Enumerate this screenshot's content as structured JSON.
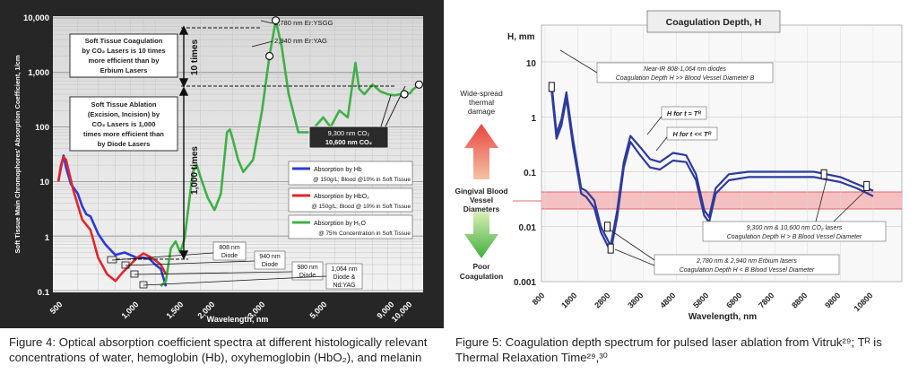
{
  "figure4": {
    "ylabel": "Soft Tissue Main Chromophores' Absorption Coefficient, 1/cm",
    "xlabel": "Wavelength, nm",
    "y_ticks": [
      "10,000",
      "1,000",
      "100",
      "10",
      "1",
      "0.1"
    ],
    "x_ticks": [
      "500",
      "1,000",
      "1,500",
      "2,000",
      "3,000",
      "5,000",
      "9,000",
      "10,000"
    ],
    "note_coag": [
      "Soft Tissue Coagulation",
      "by CO₂ Lasers is 10 times",
      "more efficient than by",
      "Erbium Lasers"
    ],
    "note_abl": [
      "Soft Tissue Ablation",
      "(Excision, Incision) by",
      "CO₂ Lasers is 1,000",
      "times more efficient than",
      "by Diode Lasers"
    ],
    "label_10x": "10 times",
    "label_1000x": "1,000 times",
    "erbium_labels": [
      "2,780 nm Er:YSGG",
      "2,940 nm Er:YAG"
    ],
    "co2_labels": [
      "9,300 nm CO₂",
      "10,600 nm CO₂"
    ],
    "diode_labels": [
      [
        "808 nm",
        "Diode"
      ],
      [
        "940 nm",
        "Diode"
      ],
      [
        "980 nm",
        "Diode"
      ],
      [
        "1,064 nm",
        "Diode &",
        "Nd:YAG"
      ]
    ],
    "legend": [
      {
        "line1": "Absorption by Hb",
        "line2": "@ 150g/L; Blood @10% in Soft Tissue",
        "color": "#2b3bd6"
      },
      {
        "line1": "Absorption by HbO₂",
        "line2": "@ 150g/L; Blood @ 10% in Soft Tissue",
        "color": "#e0262a"
      },
      {
        "line1": "Absorption by H₂O",
        "line2": "@ 75% Concentration in Soft Tissue",
        "color": "#3fb045"
      }
    ]
  },
  "figure5": {
    "title": "Coagulation Depth, H",
    "ylabel": "H, mm",
    "xlabel": "Wavelength, nm",
    "y_ticks": [
      "10",
      "1",
      "0.1",
      "0.01",
      "0.001"
    ],
    "x_ticks": [
      "800",
      "1800",
      "2800",
      "3800",
      "4800",
      "5800",
      "6800",
      "7800",
      "8800",
      "9800",
      "10800"
    ],
    "left_top": [
      "Wide-spread",
      "thermal",
      "damage"
    ],
    "left_mid": [
      "Gingival Blood",
      "Vessel",
      "Diameters"
    ],
    "left_bot": [
      "Poor",
      "Coagulation"
    ],
    "ann_diode": [
      "Near-IR 808-1,064 nm diodes",
      "Coagulation Depth H >> Blood Vessel Diameter B"
    ],
    "ann_co2": [
      "9,300 nm & 10,600 nm CO₂ lasers",
      "Coagulation Depth H > B Blood Vessel Diameter"
    ],
    "ann_erb": [
      "2,780 nm & 2,940 nm Erbium lasers",
      "Coagulation Depth H < B Blood Vessel Diameter"
    ],
    "h_tr": "H for t ≈ Tᴿ",
    "h_ll": "H for t << Tᴿ"
  },
  "captions": {
    "fig4": "Figure 4: Optical absorption coefficient spectra at different histologically relevant concentrations of water, hemoglobin (Hb), oxyhemoglobin (HbO₂), and melanin",
    "fig5": "Figure 5: Coagulation depth spectrum for pulsed laser ablation from Vitruk²⁹; Tᴿ is Thermal Relaxation Time²⁹,³⁰"
  },
  "chart_data": [
    {
      "type": "line",
      "title": "",
      "xlabel": "Wavelength, nm",
      "ylabel": "Soft Tissue Main Chromophores' Absorption Coefficient, 1/cm",
      "x_scale": "log",
      "y_scale": "log",
      "xlim": [
        400,
        11000
      ],
      "ylim": [
        0.1,
        10000
      ],
      "grid": true,
      "legend_position": "right",
      "series": [
        {
          "name": "Absorption by Hb",
          "color": "#2b3bd6",
          "points": [
            [
              420,
              10
            ],
            [
              430,
              18
            ],
            [
              440,
              30
            ],
            [
              450,
              18
            ],
            [
              470,
              9
            ],
            [
              500,
              6
            ],
            [
              520,
              3.5
            ],
            [
              540,
              2.5
            ],
            [
              560,
              2.3
            ],
            [
              600,
              1.1
            ],
            [
              640,
              0.7
            ],
            [
              700,
              0.45
            ],
            [
              760,
              0.5
            ],
            [
              800,
              0.45
            ],
            [
              850,
              0.4
            ],
            [
              900,
              0.4
            ],
            [
              950,
              0.38
            ],
            [
              1000,
              0.3
            ],
            [
              1050,
              0.25
            ],
            [
              1100,
              0.12
            ]
          ]
        },
        {
          "name": "Absorption by HbO₂",
          "color": "#e0262a",
          "points": [
            [
              420,
              10
            ],
            [
              430,
              20
            ],
            [
              440,
              28
            ],
            [
              450,
              25
            ],
            [
              480,
              7
            ],
            [
              520,
              2
            ],
            [
              560,
              1.3
            ],
            [
              600,
              0.4
            ],
            [
              650,
              0.2
            ],
            [
              700,
              0.15
            ],
            [
              750,
              0.22
            ],
            [
              800,
              0.3
            ],
            [
              850,
              0.4
            ],
            [
              900,
              0.48
            ],
            [
              950,
              0.42
            ],
            [
              1000,
              0.36
            ],
            [
              1050,
              0.3
            ],
            [
              1100,
              0.2
            ]
          ]
        },
        {
          "name": "Absorption by H₂O",
          "color": "#3fb045",
          "points": [
            [
              1050,
              0.12
            ],
            [
              1100,
              0.15
            ],
            [
              1150,
              0.6
            ],
            [
              1200,
              0.8
            ],
            [
              1250,
              0.5
            ],
            [
              1300,
              0.9
            ],
            [
              1400,
              15
            ],
            [
              1450,
              20
            ],
            [
              1500,
              12
            ],
            [
              1600,
              5
            ],
            [
              1700,
              3
            ],
            [
              1800,
              6
            ],
            [
              1900,
              80
            ],
            [
              1950,
              90
            ],
            [
              2000,
              60
            ],
            [
              2100,
              25
            ],
            [
              2200,
              15
            ],
            [
              2400,
              25
            ],
            [
              2600,
              200
            ],
            [
              2780,
              2000
            ],
            [
              2940,
              9000
            ],
            [
              3100,
              3000
            ],
            [
              3300,
              400
            ],
            [
              3600,
              80
            ],
            [
              4000,
              80
            ],
            [
              4500,
              150
            ],
            [
              4800,
              100
            ],
            [
              5200,
              200
            ],
            [
              5600,
              150
            ],
            [
              6000,
              1500
            ],
            [
              6200,
              500
            ],
            [
              6500,
              400
            ],
            [
              7000,
              600
            ],
            [
              7500,
              450
            ],
            [
              8000,
              400
            ],
            [
              8500,
              380
            ],
            [
              9000,
              400
            ],
            [
              9300,
              400
            ],
            [
              9800,
              420
            ],
            [
              10000,
              480
            ],
            [
              10600,
              600
            ]
          ]
        }
      ]
    },
    {
      "type": "line",
      "title": "Coagulation Depth, H",
      "xlabel": "Wavelength, nm",
      "ylabel": "H, mm",
      "y_scale": "log",
      "xlim": [
        800,
        11000
      ],
      "ylim": [
        0.001,
        20
      ],
      "grid": true,
      "series": [
        {
          "name": "H for t ≈ Tᴿ",
          "color": "#2d3a9e",
          "points": [
            [
              1000,
              4
            ],
            [
              1150,
              0.5
            ],
            [
              1300,
              0.9
            ],
            [
              1450,
              2.8
            ],
            [
              1650,
              0.4
            ],
            [
              1900,
              0.05
            ],
            [
              2050,
              0.045
            ],
            [
              2300,
              0.03
            ],
            [
              2500,
              0.01
            ],
            [
              2800,
              0.0045
            ],
            [
              3000,
              0.02
            ],
            [
              3200,
              0.15
            ],
            [
              3400,
              0.45
            ],
            [
              3700,
              0.28
            ],
            [
              4000,
              0.17
            ],
            [
              4300,
              0.15
            ],
            [
              4700,
              0.22
            ],
            [
              5100,
              0.2
            ],
            [
              5400,
              0.09
            ],
            [
              5650,
              0.02
            ],
            [
              5800,
              0.015
            ],
            [
              6000,
              0.05
            ],
            [
              6400,
              0.09
            ],
            [
              7000,
              0.1
            ],
            [
              8000,
              0.1
            ],
            [
              9000,
              0.1
            ],
            [
              9800,
              0.08
            ],
            [
              10300,
              0.06
            ],
            [
              10800,
              0.045
            ]
          ]
        },
        {
          "name": "H for t << Tᴿ",
          "color": "#2d3a9e",
          "points": [
            [
              1000,
              3
            ],
            [
              1150,
              0.4
            ],
            [
              1300,
              0.7
            ],
            [
              1450,
              2.2
            ],
            [
              1650,
              0.3
            ],
            [
              1900,
              0.04
            ],
            [
              2050,
              0.035
            ],
            [
              2300,
              0.022
            ],
            [
              2500,
              0.008
            ],
            [
              2800,
              0.0035
            ],
            [
              3000,
              0.015
            ],
            [
              3200,
              0.12
            ],
            [
              3400,
              0.35
            ],
            [
              3700,
              0.2
            ],
            [
              4000,
              0.12
            ],
            [
              4300,
              0.11
            ],
            [
              4700,
              0.16
            ],
            [
              5100,
              0.15
            ],
            [
              5400,
              0.07
            ],
            [
              5650,
              0.016
            ],
            [
              5800,
              0.012
            ],
            [
              6000,
              0.04
            ],
            [
              6400,
              0.07
            ],
            [
              7000,
              0.08
            ],
            [
              8000,
              0.08
            ],
            [
              9000,
              0.08
            ],
            [
              9800,
              0.065
            ],
            [
              10300,
              0.05
            ],
            [
              10800,
              0.036
            ]
          ]
        }
      ]
    }
  ]
}
